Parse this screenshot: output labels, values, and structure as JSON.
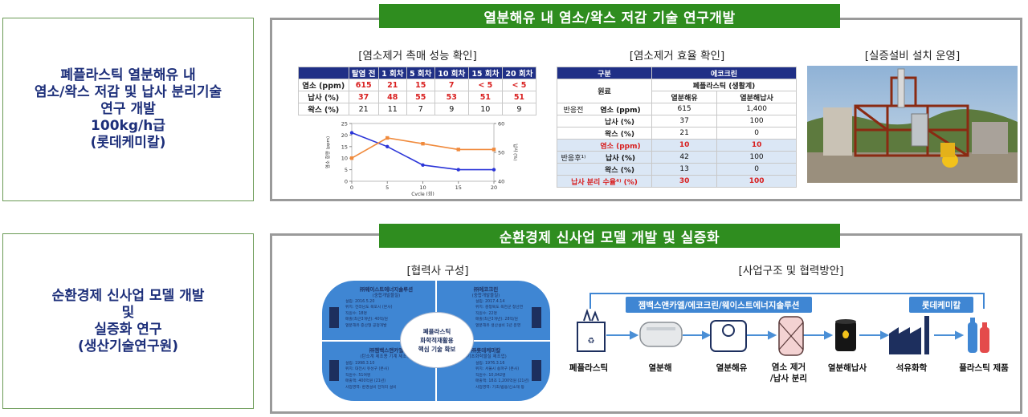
{
  "top_left": {
    "lines": [
      "폐플라스틱 열분해유 내",
      "염소/왁스 저감 및 납사 분리기술",
      "연구 개발",
      "100kg/h급",
      "(롯데케미칼)"
    ]
  },
  "bottom_left": {
    "lines": [
      "순환경제 신사업 모델 개발",
      "및",
      "실증화 연구",
      "(생산기술연구원)"
    ]
  },
  "top_panel": {
    "banner": "열분해유 내 염소/왁스 저감 기술 연구개발",
    "catalyst": {
      "caption": "[염소제거 촉매 성능 확인]",
      "headers": [
        "",
        "탈염 전",
        "1 회차",
        "5 회차",
        "10 회차",
        "15 회차",
        "20 회차"
      ],
      "rows": [
        {
          "label": "염소 (ppm)",
          "cells": [
            "615",
            "21",
            "15",
            "7",
            "< 5",
            "< 5"
          ],
          "red": true
        },
        {
          "label": "납사 (%)",
          "cells": [
            "37",
            "48",
            "55",
            "53",
            "51",
            "51"
          ],
          "red": true
        },
        {
          "label": "왁스 (%)",
          "cells": [
            "21",
            "11",
            "7",
            "9",
            "10",
            "9"
          ],
          "red": false
        }
      ]
    },
    "chart_data": {
      "type": "line",
      "x": [
        0,
        5,
        10,
        15,
        20
      ],
      "xlabel": "Cycle (회)",
      "ylabel_left": "염소 함량 (ppm)",
      "ylabel_right": "납사 (%)",
      "ylim_left": [
        0,
        25
      ],
      "ylim_right": [
        40,
        60
      ],
      "xticks": [
        "0",
        "5",
        "10",
        "15",
        "20"
      ],
      "yticks_left": [
        "0",
        "5",
        "10",
        "15",
        "20",
        "25"
      ],
      "yticks_right": [
        "40",
        "50",
        "60"
      ],
      "series": [
        {
          "axis": "left",
          "color": "#2b35d8",
          "values": [
            21,
            15,
            7,
            5,
            5
          ]
        },
        {
          "axis": "right",
          "color": "#f08a3c",
          "values": [
            48,
            55,
            53,
            51,
            51
          ]
        }
      ]
    },
    "efficiency": {
      "caption": "[염소제거 효율 확인]",
      "head1": [
        "구분",
        "에코크린"
      ],
      "head2_label": "원료",
      "head2": "폐플라스틱 (생활계)",
      "head3": [
        "열분해유",
        "열분해납사"
      ],
      "group_before": "반응전",
      "group_after": "반응후¹⁾",
      "rows_before": [
        {
          "label": "염소 (ppm)",
          "a": "615",
          "b": "1,400"
        },
        {
          "label": "납사 (%)",
          "a": "37",
          "b": "100"
        },
        {
          "label": "왁스 (%)",
          "a": "21",
          "b": "0"
        }
      ],
      "rows_after": [
        {
          "label": "염소 (ppm)",
          "a": "10",
          "b": "10",
          "red": true
        },
        {
          "label": "납사 (%)",
          "a": "42",
          "b": "100",
          "red": false
        },
        {
          "label": "왁스 (%)",
          "a": "13",
          "b": "0",
          "red": false
        }
      ],
      "yield_label": "납사 분리 수율⁴⁾ (%)",
      "yield": [
        "30",
        "100"
      ]
    },
    "demo": {
      "caption": "[실증설비 설치 운영]"
    }
  },
  "bottom_panel": {
    "banner": "순환경제 신사업 모델 개발 및 실증화",
    "partners": {
      "caption": "[협력사 구성]",
      "center": [
        "폐플라스틱",
        "화학적재활용",
        "핵심 기술 확보"
      ],
      "quads": [
        {
          "title": "㈜웨이스트에너지솔루션",
          "sub": "(중합개발물질)",
          "bullets": [
            "설립: 2016.5.20",
            "위치: 전라남도 목포시 (본사)",
            "직원수: 18명",
            "매출(최근3개년): 40억/원",
            "열분해유 증산형 공정개발"
          ]
        },
        {
          "title": "㈜에코크린",
          "sub": "(중합개발물질)",
          "bullets": [
            "설립: 2017.4.14",
            "위치: 충청북도 옥천군 청산면",
            "직원수: 22명",
            "매출(최근3개년): 28억/원",
            "열분해유 생산설비 1년 운영"
          ]
        },
        {
          "title": "㈜젬백스앤카엘",
          "sub": "(탄소계 제조용 기계 제조업)",
          "bullets": [
            "설립: 1998.3.10",
            "위치: 대전시 유성구 (본사)",
            "직원수: 51여명",
            "매출액: 400억원 (21년)",
            "사업영역: 환경설비 전처리 설비"
          ]
        },
        {
          "title": "㈜롯데케미칼",
          "sub": "(기초화학물질 제조업)",
          "bullets": [
            "설립: 1976.3.16",
            "위치: 서울시 송파구 (본사)",
            "직원수: 10,042명",
            "매출액: 18조 1,200억원 (21년)",
            "사업영역: 기초/범용/신소재 등"
          ]
        }
      ]
    },
    "business": {
      "caption": "[사업구조 및 협력방안]",
      "partner_left": "젬백스앤카엘/에코크린/웨이스트에너지솔루션",
      "partner_right": "롯데케미칼",
      "steps": [
        "폐플라스틱",
        "열분해",
        "열분해유",
        "염소 제거\n/납사 분리",
        "열분해납사",
        "석유화학",
        "플라스틱 제품"
      ]
    }
  }
}
